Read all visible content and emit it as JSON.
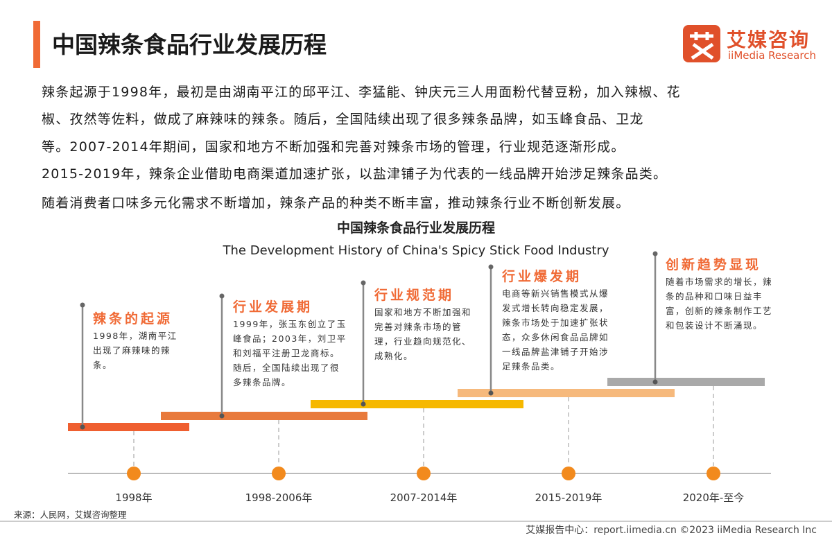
{
  "header": {
    "title": "中国辣条食品行业发展历程",
    "logo_name": "艾媒咨询",
    "logo_sub": "iiMedia Research"
  },
  "intro": [
    "辣条起源于1998年，最初是由湖南平江的邱平江、李猛能、钟庆元三人用面粉代替豆粉，加入辣椒、花",
    "椒、孜然等佐料，做成了麻辣味的辣条。随后，全国陆续出现了很多辣条品牌，如玉峰食品、卫龙",
    "等。2007-2014年期间，国家和地方不断加强和完善对辣条市场的管理，行业规范逐渐形成。",
    "2015-2019年，辣条企业借助电商渠道加速扩张，以盐津铺子为代表的一线品牌开始涉足辣条品类。",
    "随着消费者口味多元化需求不断增加，辣条产品的种类不断丰富，推动辣条行业不断创新发展。"
  ],
  "diagram": {
    "title": "中国辣条食品行业发展历程",
    "subtitle": "The Development History of China's Spicy Stick Food Industry",
    "stages": [
      {
        "title": "辣条的起源",
        "text": "1998年，湖南平江出现了麻辣味的辣条。",
        "period": "1998年"
      },
      {
        "title": "行业发展期",
        "text": "1999年，张玉东创立了玉峰食品；2003年，刘卫平和刘福平注册卫龙商标。随后，全国陆续出现了很多辣条品牌。",
        "period": "1998-2006年"
      },
      {
        "title": "行业规范期",
        "text": "国家和地方不断加强和完善对辣条市场的管理，行业趋向规范化、成熟化。",
        "period": "2007-2014年"
      },
      {
        "title": "行业爆发期",
        "text": "电商等新兴销售模式从爆发式增长转向稳定发展，辣条市场处于加速扩张状态，众多休闲食品品牌如一线品牌盐津铺子开始涉足辣条品类。",
        "period": "2015-2019年"
      },
      {
        "title": "创新趋势显现",
        "text": "随着市场需求的增长，辣条的品种和口味日益丰富，创新的辣条制作工艺和包装设计不断涌现。",
        "period": "2020年-至今"
      }
    ]
  },
  "footer": {
    "source": "来源：人民网，艾媒咨询整理",
    "site": "艾媒报告中心：report.iimedia.cn  ©2023  iiMedia Research  Inc"
  }
}
